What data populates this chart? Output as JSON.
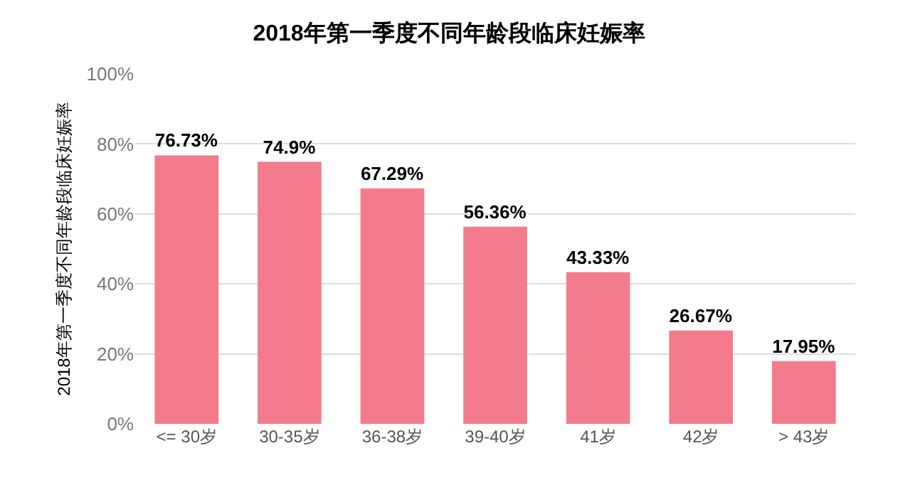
{
  "chart_data": {
    "type": "bar",
    "title": "2018年第一季度不同年龄段临床妊娠率",
    "ylabel": "2018年第一季度不同年龄段临床妊娠率",
    "categories": [
      "<= 30岁",
      "30-35岁",
      "36-38岁",
      "39-40岁",
      "41岁",
      "42岁",
      "> 43岁"
    ],
    "values": [
      76.73,
      74.9,
      67.29,
      56.36,
      43.33,
      26.67,
      17.95
    ],
    "value_labels": [
      "76.73%",
      "74.9%",
      "67.29%",
      "56.36%",
      "43.33%",
      "26.67%",
      "17.95%"
    ],
    "color": "#f47b8b",
    "ylim": [
      0,
      100
    ],
    "yticks": [
      {
        "value": 0,
        "label": "0%"
      },
      {
        "value": 20,
        "label": "20%"
      },
      {
        "value": 40,
        "label": "40%"
      },
      {
        "value": 60,
        "label": "60%"
      },
      {
        "value": 80,
        "label": "80%"
      },
      {
        "value": 100,
        "label": "100%"
      }
    ],
    "grid": "y"
  }
}
